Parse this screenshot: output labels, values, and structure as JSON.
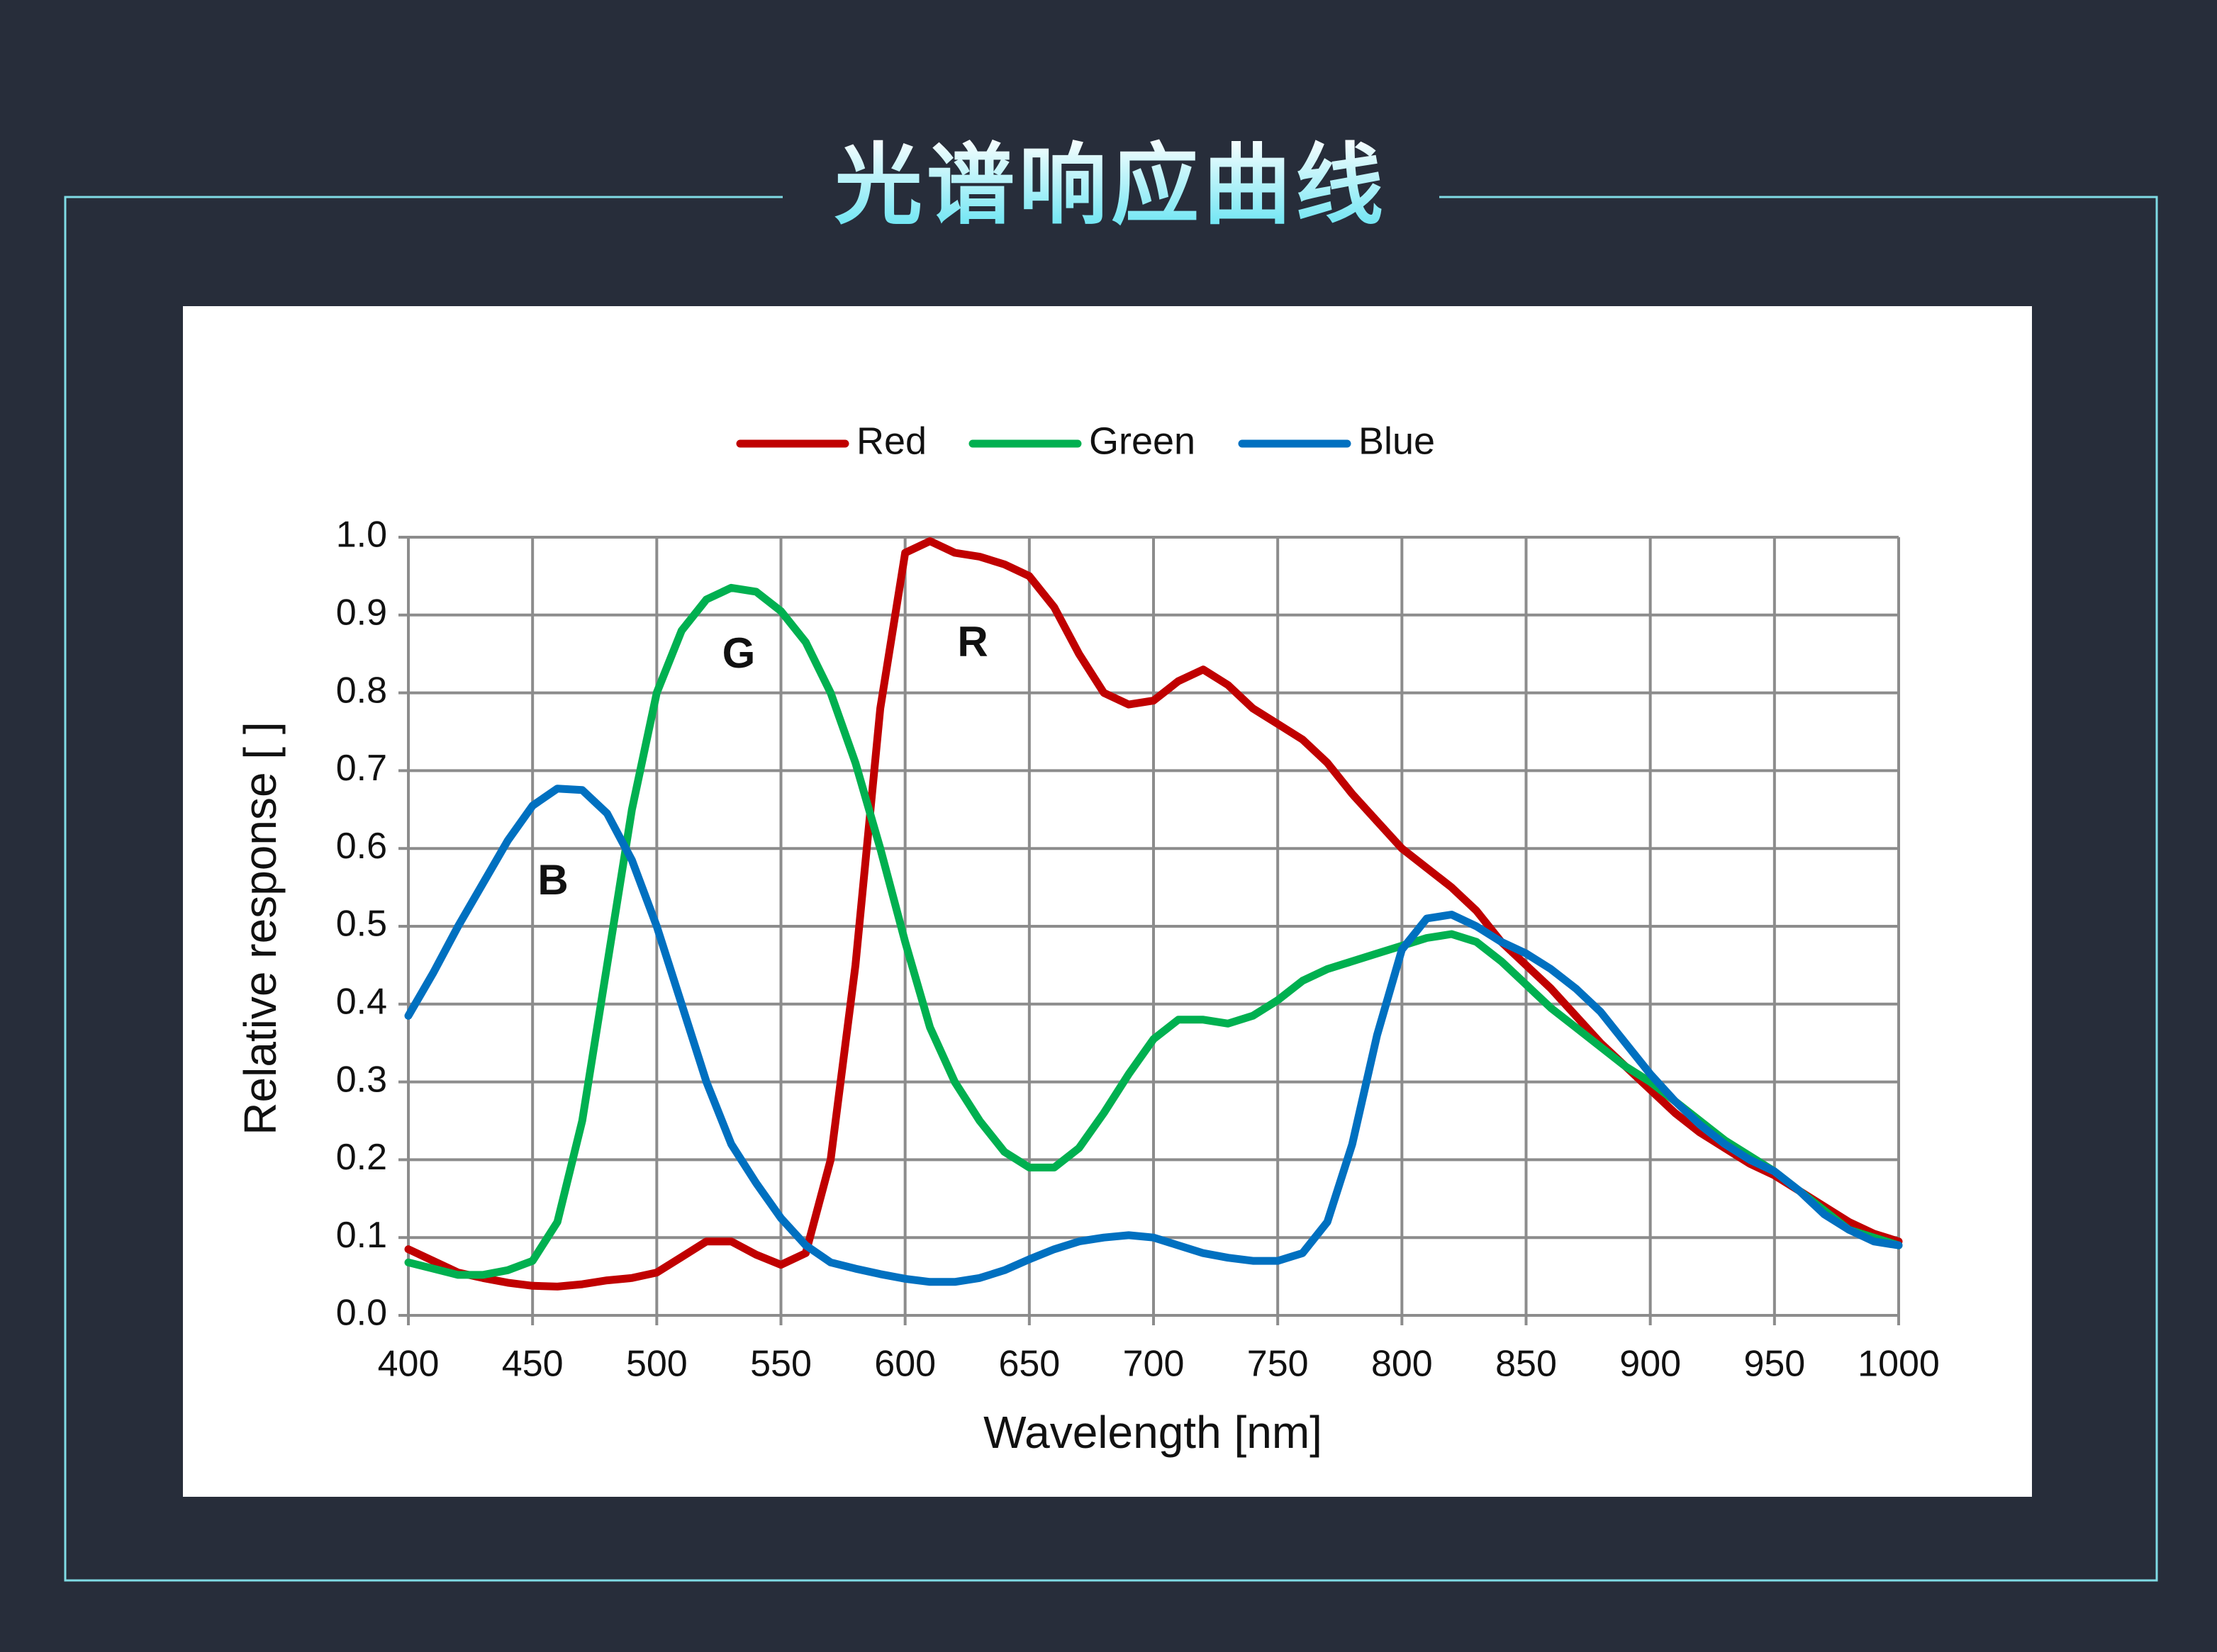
{
  "chart_data": {
    "type": "line",
    "title": "光谱响应曲线",
    "x_label": "Wavelength [nm]",
    "y_label": "Relative response [ ]",
    "annotations": [
      "B",
      "G",
      "R"
    ],
    "x": [
      400,
      410,
      420,
      430,
      440,
      450,
      460,
      470,
      480,
      490,
      500,
      510,
      520,
      530,
      540,
      550,
      560,
      570,
      580,
      590,
      600,
      610,
      620,
      630,
      640,
      650,
      660,
      670,
      680,
      690,
      700,
      710,
      720,
      730,
      740,
      750,
      760,
      770,
      780,
      790,
      800,
      810,
      820,
      830,
      840,
      850,
      860,
      870,
      880,
      890,
      900,
      910,
      920,
      930,
      940,
      950,
      960,
      970,
      980,
      990,
      1000
    ],
    "series": [
      {
        "name": "Red",
        "color": "#c00000",
        "values": [
          0.085,
          0.07,
          0.055,
          0.048,
          0.042,
          0.038,
          0.037,
          0.04,
          0.045,
          0.048,
          0.055,
          0.075,
          0.095,
          0.095,
          0.078,
          0.065,
          0.08,
          0.2,
          0.45,
          0.78,
          0.98,
          0.995,
          0.98,
          0.975,
          0.965,
          0.95,
          0.91,
          0.85,
          0.8,
          0.785,
          0.79,
          0.815,
          0.83,
          0.81,
          0.78,
          0.76,
          0.74,
          0.71,
          0.67,
          0.635,
          0.6,
          0.575,
          0.55,
          0.52,
          0.48,
          0.45,
          0.42,
          0.385,
          0.35,
          0.32,
          0.29,
          0.26,
          0.235,
          0.215,
          0.195,
          0.18,
          0.16,
          0.14,
          0.12,
          0.105,
          0.095
        ]
      },
      {
        "name": "Green",
        "color": "#00b050",
        "values": [
          0.068,
          0.06,
          0.052,
          0.052,
          0.058,
          0.07,
          0.12,
          0.25,
          0.45,
          0.65,
          0.8,
          0.88,
          0.92,
          0.935,
          0.93,
          0.905,
          0.865,
          0.8,
          0.71,
          0.6,
          0.48,
          0.37,
          0.3,
          0.25,
          0.21,
          0.19,
          0.19,
          0.215,
          0.26,
          0.31,
          0.355,
          0.38,
          0.38,
          0.375,
          0.385,
          0.405,
          0.43,
          0.445,
          0.455,
          0.465,
          0.475,
          0.485,
          0.49,
          0.48,
          0.455,
          0.425,
          0.395,
          0.37,
          0.345,
          0.32,
          0.3,
          0.275,
          0.25,
          0.225,
          0.205,
          0.185,
          0.16,
          0.135,
          0.11,
          0.1,
          0.09
        ]
      },
      {
        "name": "Blue",
        "color": "#0070c0",
        "values": [
          0.385,
          0.44,
          0.5,
          0.555,
          0.61,
          0.655,
          0.677,
          0.675,
          0.645,
          0.585,
          0.5,
          0.4,
          0.3,
          0.22,
          0.17,
          0.125,
          0.09,
          0.068,
          0.06,
          0.053,
          0.047,
          0.043,
          0.043,
          0.048,
          0.058,
          0.072,
          0.085,
          0.095,
          0.1,
          0.103,
          0.1,
          0.09,
          0.08,
          0.074,
          0.07,
          0.07,
          0.08,
          0.12,
          0.22,
          0.36,
          0.47,
          0.51,
          0.515,
          0.5,
          0.48,
          0.465,
          0.445,
          0.42,
          0.39,
          0.35,
          0.31,
          0.275,
          0.245,
          0.22,
          0.2,
          0.185,
          0.16,
          0.13,
          0.11,
          0.095,
          0.09
        ]
      }
    ],
    "xlim": [
      400,
      1000
    ],
    "xticks": [
      400,
      450,
      500,
      550,
      600,
      650,
      700,
      750,
      800,
      850,
      900,
      950,
      1000
    ],
    "ylim": [
      0,
      1
    ],
    "yticks": [
      {
        "value": 0,
        "label": "0.0"
      },
      0.1,
      0.2,
      0.3,
      0.4,
      0.5,
      0.6,
      0.7,
      0.8,
      0.9,
      {
        "value": 1,
        "label": "1.0"
      }
    ],
    "grid": true,
    "legend": "top"
  }
}
